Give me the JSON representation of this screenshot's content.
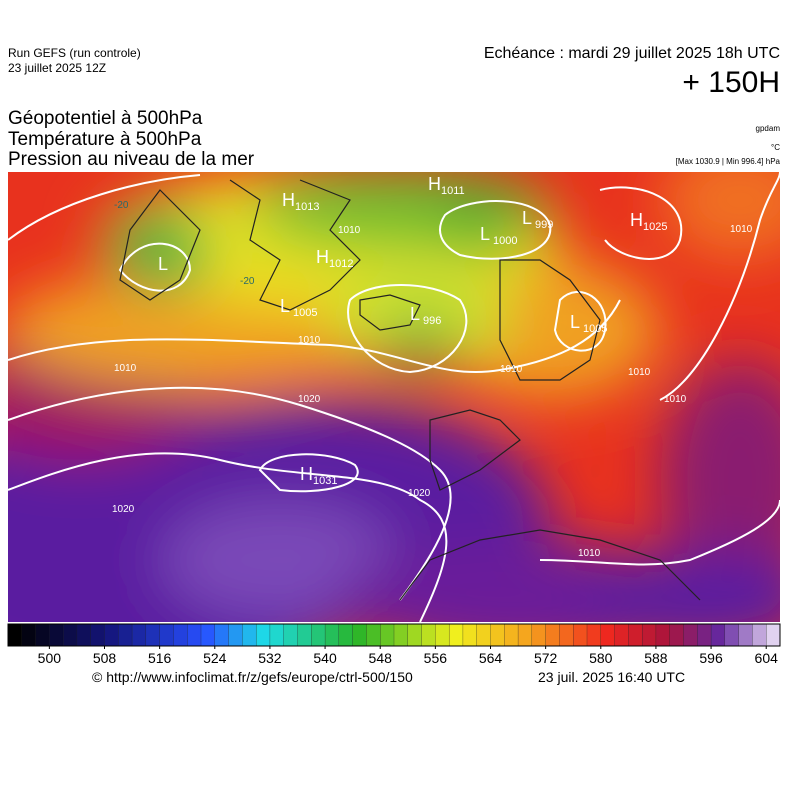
{
  "header": {
    "run": "Run GEFS (run controle)",
    "run_date": "23 juillet 2025 12Z",
    "valid": "Echéance : mardi 29 juillet 2025 18h UTC",
    "lead": "+ 150H"
  },
  "legend": {
    "lines": [
      "Géopotentiel à 500hPa",
      "Température à 500hPa",
      "Pression au niveau de la mer"
    ],
    "units": [
      "gpdam",
      "°C",
      "[Max 1030.9 | Min 996.4] hPa"
    ]
  },
  "map": {
    "centers": [
      {
        "letter": "H",
        "value": 1013
      },
      {
        "letter": "L"
      },
      {
        "letter": "H",
        "value": 1011
      },
      {
        "letter": "L",
        "value": 999
      },
      {
        "letter": "L",
        "value": 1000
      },
      {
        "letter": "H",
        "value": 1012
      },
      {
        "letter": "L",
        "value": 1005
      },
      {
        "letter": "L",
        "value": 996
      },
      {
        "letter": "L",
        "value": 1005
      },
      {
        "letter": "H",
        "value": 1025
      },
      {
        "letter": "H",
        "value": 1031
      }
    ],
    "isobar_labels": [
      1010,
      1010,
      1010,
      1020,
      1020,
      1020,
      1010,
      1010,
      1010,
      1010,
      1010
    ],
    "isotherm_labels": [
      -20,
      -20
    ]
  },
  "colorbar": {
    "lim": [
      494,
      606
    ],
    "ticks": [
      500,
      508,
      516,
      524,
      532,
      540,
      548,
      556,
      564,
      572,
      580,
      588,
      596,
      604
    ]
  },
  "footer": {
    "source": "© http://www.infoclimat.fr/z/gefs/europe/ctrl-500/150",
    "generated": "23 juil. 2025 16:40 UTC"
  }
}
